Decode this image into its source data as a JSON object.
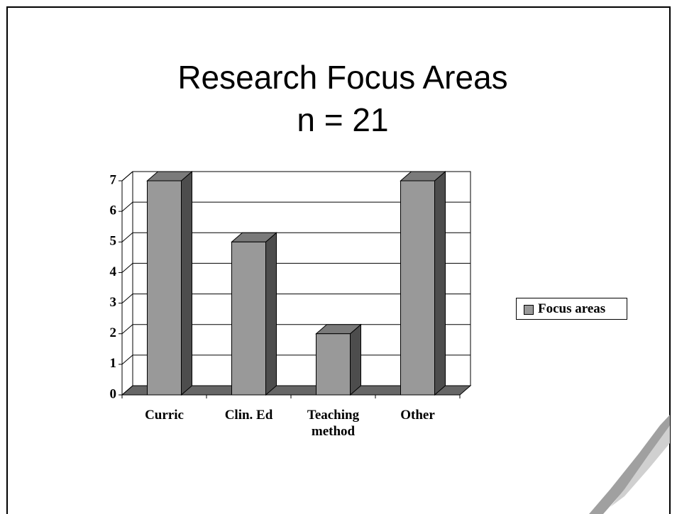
{
  "chart_data": {
    "type": "bar3d",
    "title": "Research Focus Areas",
    "subtitle": "n = 21",
    "categories": [
      "Curric",
      "Clin. Ed",
      "Teaching method",
      "Other"
    ],
    "series": [
      {
        "name": "Focus areas",
        "color": "#999999",
        "values": [
          7,
          5,
          2,
          7
        ]
      }
    ],
    "ylim": [
      0,
      7
    ],
    "yticks": [
      0,
      1,
      2,
      3,
      4,
      5,
      6,
      7
    ],
    "grid": true,
    "legend": "right"
  }
}
